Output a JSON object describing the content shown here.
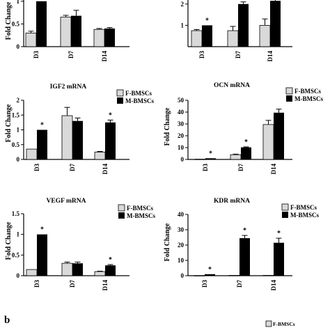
{
  "figure": {
    "panel_letter": "b",
    "bottom_legend_label": "F-BMSCs"
  },
  "colors": {
    "female": "#d9d9d9",
    "male": "#000000",
    "axis": "#000000"
  },
  "chart_data": [
    {
      "id": "top-left",
      "type": "bar",
      "title": "",
      "ylabel": "Fold Change",
      "categories": [
        "D3",
        "D7",
        "D14"
      ],
      "series": [
        {
          "values": [
            0.3,
            0.65,
            0.38
          ],
          "errors": [
            0.04,
            0.04,
            0.02
          ]
        },
        {
          "values": [
            1.0,
            0.68,
            0.4
          ],
          "errors": [
            0.0,
            0.12,
            0.02
          ]
        }
      ],
      "ylim": [
        0,
        1.15
      ],
      "yticks": [
        0,
        0.5,
        1
      ],
      "ytick_labels": [
        "0",
        "0.5",
        "1"
      ],
      "significance": [
        "*",
        "",
        ""
      ],
      "legend": [],
      "cropped_top": true
    },
    {
      "id": "top-right",
      "type": "bar",
      "title": "",
      "ylabel": "",
      "categories": [
        "D3",
        "D7",
        "D14"
      ],
      "series": [
        {
          "values": [
            0.75,
            0.75,
            1.0
          ],
          "errors": [
            0.05,
            0.2,
            0.3
          ]
        },
        {
          "values": [
            1.0,
            2.0,
            2.15
          ],
          "errors": [
            0.0,
            0.1,
            0.35
          ]
        }
      ],
      "ylim": [
        0,
        2.45
      ],
      "yticks": [
        1,
        2
      ],
      "ytick_labels": [
        "1",
        "2"
      ],
      "significance": [
        "*",
        "",
        ""
      ],
      "legend": [],
      "cropped_top": true
    },
    {
      "id": "igf2",
      "type": "bar",
      "title": "IGF2 mRNA",
      "ylabel": "Fold Change",
      "categories": [
        "D3",
        "D7",
        "D14"
      ],
      "series": [
        {
          "name": "F-BMSCs",
          "values": [
            0.35,
            1.48,
            0.25
          ],
          "errors": [
            0.0,
            0.28,
            0.02
          ]
        },
        {
          "name": "M-BMSCs",
          "values": [
            1.0,
            1.3,
            1.25
          ],
          "errors": [
            0.0,
            0.1,
            0.08
          ]
        }
      ],
      "ylim": [
        0,
        2.0
      ],
      "yticks": [
        0,
        0.5,
        1,
        1.5,
        2
      ],
      "ytick_labels": [
        "0",
        "0.5",
        "1",
        "1.5",
        "2"
      ],
      "significance": [
        "*",
        "",
        "*"
      ],
      "legend": [
        "F-BMSCs",
        "M-BMSCs"
      ]
    },
    {
      "id": "ocn",
      "type": "bar",
      "title": "OCN mRNA",
      "ylabel": "Fold Change",
      "categories": [
        "D3",
        "D7",
        "D14"
      ],
      "series": [
        {
          "name": "F-BMSCs",
          "values": [
            0.2,
            4.0,
            29.5
          ],
          "errors": [
            0.0,
            0.5,
            3.5
          ]
        },
        {
          "name": "M-BMSCs",
          "values": [
            1.0,
            10.2,
            39.5
          ],
          "errors": [
            0.0,
            0.4,
            3.0
          ]
        }
      ],
      "ylim": [
        0,
        50
      ],
      "yticks": [
        0,
        10,
        20,
        30,
        40,
        50
      ],
      "ytick_labels": [
        "0",
        "10",
        "20",
        "30",
        "40",
        "50"
      ],
      "significance": [
        "*",
        "*",
        ""
      ],
      "legend": [
        "F-BMSCs",
        "M-BMSCs"
      ]
    },
    {
      "id": "vegf",
      "type": "bar",
      "title": "VEGF mRNA",
      "ylabel": "Fold Change",
      "categories": [
        "D3",
        "D7",
        "D14"
      ],
      "series": [
        {
          "name": "F-BMSCs",
          "values": [
            0.15,
            0.3,
            0.1
          ],
          "errors": [
            0.0,
            0.03,
            0.01
          ]
        },
        {
          "name": "M-BMSCs",
          "values": [
            1.0,
            0.3,
            0.25
          ],
          "errors": [
            0.0,
            0.03,
            0.02
          ]
        }
      ],
      "ylim": [
        0,
        1.5
      ],
      "yticks": [
        0,
        0.5,
        1,
        1.5
      ],
      "ytick_labels": [
        "0",
        "0.5",
        "1",
        "1.5"
      ],
      "significance": [
        "*",
        "",
        "*"
      ],
      "legend": [
        "F-BMSCs",
        "M-BMSCs"
      ]
    },
    {
      "id": "kdr",
      "type": "bar",
      "title": "KDR mRNA",
      "ylabel": "Fold Change",
      "categories": [
        "D3",
        "D7",
        "D14"
      ],
      "series": [
        {
          "name": "F-BMSCs",
          "values": [
            0.1,
            0.2,
            0.2
          ],
          "errors": [
            0.0,
            0.0,
            0.0
          ]
        },
        {
          "name": "M-BMSCs",
          "values": [
            1.0,
            24.5,
            21.5
          ],
          "errors": [
            0.0,
            1.8,
            3.0
          ]
        }
      ],
      "ylim": [
        0,
        40
      ],
      "yticks": [
        0,
        10,
        20,
        30,
        40
      ],
      "ytick_labels": [
        "0",
        "10",
        "20",
        "30",
        "40"
      ],
      "significance": [
        "*",
        "*",
        "*"
      ],
      "legend": [
        "F-BMSCs",
        "M-BMSCs"
      ]
    }
  ]
}
